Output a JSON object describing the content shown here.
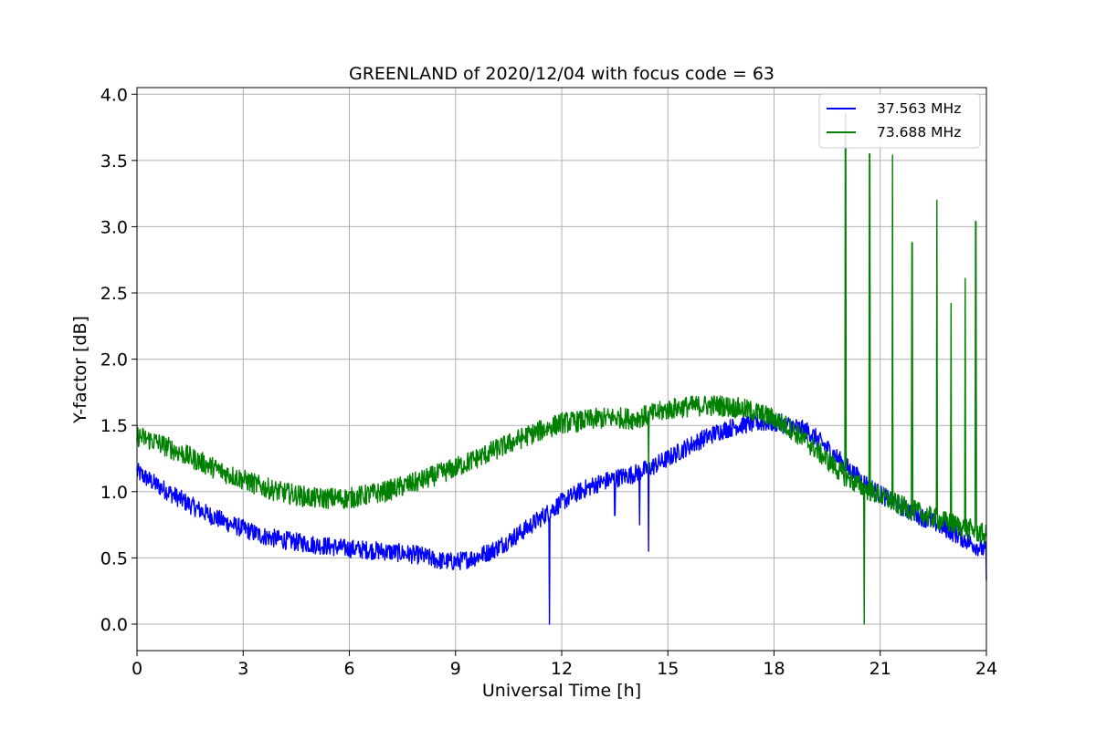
{
  "chart_data": {
    "type": "line",
    "title": "GREENLAND of 2020/12/04 with focus code = 63",
    "xlabel": "Universal Time [h]",
    "ylabel": "Y-factor [dB]",
    "xlim": [
      0,
      24
    ],
    "ylim": [
      -0.2,
      4.05
    ],
    "xticks": [
      0,
      3,
      6,
      9,
      12,
      15,
      18,
      21,
      24
    ],
    "yticks": [
      0.0,
      0.5,
      1.0,
      1.5,
      2.0,
      2.5,
      3.0,
      3.5,
      4.0
    ],
    "xtick_labels": [
      "0",
      "3",
      "6",
      "9",
      "12",
      "15",
      "18",
      "21",
      "24"
    ],
    "ytick_labels": [
      "0.0",
      "0.5",
      "1.0",
      "1.5",
      "2.0",
      "2.5",
      "3.0",
      "3.5",
      "4.0"
    ],
    "grid": true,
    "legend_position": "top-right",
    "series": [
      {
        "name": "37.563 MHz",
        "color": "#0000ff",
        "noise_amplitude": 0.07,
        "x": [
          0,
          0.5,
          1,
          1.5,
          2,
          2.5,
          3,
          3.5,
          4,
          5,
          6,
          7,
          8,
          8.5,
          9,
          9.5,
          10,
          10.5,
          11,
          11.5,
          12,
          12.5,
          13,
          13.5,
          14,
          14.5,
          15,
          15.5,
          16,
          16.5,
          17,
          17.5,
          18,
          18.5,
          19,
          19.5,
          20,
          20.5,
          21,
          21.5,
          22,
          22.5,
          23,
          23.5,
          24
        ],
        "y": [
          1.15,
          1.06,
          0.98,
          0.9,
          0.83,
          0.77,
          0.72,
          0.67,
          0.64,
          0.6,
          0.57,
          0.55,
          0.52,
          0.48,
          0.47,
          0.5,
          0.55,
          0.63,
          0.72,
          0.82,
          0.92,
          1.0,
          1.06,
          1.1,
          1.13,
          1.18,
          1.25,
          1.33,
          1.4,
          1.46,
          1.5,
          1.52,
          1.52,
          1.5,
          1.45,
          1.33,
          1.2,
          1.08,
          0.98,
          0.9,
          0.83,
          0.77,
          0.7,
          0.62,
          0.55
        ],
        "spikes": [
          {
            "x": 11.65,
            "y": 0.0
          },
          {
            "x": 14.45,
            "y": 0.55
          },
          {
            "x": 14.2,
            "y": 0.75
          },
          {
            "x": 13.5,
            "y": 0.82
          },
          {
            "x": 24.0,
            "y": 0.33
          }
        ]
      },
      {
        "name": "73.688 MHz",
        "color": "#008000",
        "noise_amplitude": 0.08,
        "x": [
          0,
          0.5,
          1,
          1.5,
          2,
          2.5,
          3,
          3.5,
          4,
          5,
          6,
          7,
          8,
          8.5,
          9,
          9.5,
          10,
          10.5,
          11,
          11.5,
          12,
          12.5,
          13,
          13.5,
          14,
          14.5,
          15,
          15.5,
          16,
          16.5,
          17,
          17.5,
          18,
          18.5,
          19,
          19.5,
          20,
          20.5,
          21,
          21.5,
          22,
          22.5,
          23,
          23.5,
          24
        ],
        "y": [
          1.42,
          1.38,
          1.32,
          1.26,
          1.2,
          1.14,
          1.09,
          1.04,
          1.0,
          0.95,
          0.95,
          1.0,
          1.08,
          1.13,
          1.18,
          1.24,
          1.3,
          1.36,
          1.42,
          1.47,
          1.52,
          1.53,
          1.55,
          1.56,
          1.55,
          1.58,
          1.62,
          1.64,
          1.65,
          1.65,
          1.63,
          1.6,
          1.55,
          1.47,
          1.36,
          1.24,
          1.12,
          1.03,
          0.97,
          0.9,
          0.85,
          0.8,
          0.76,
          0.72,
          0.67
        ],
        "spikes": [
          {
            "x": 20.02,
            "y": 3.85
          },
          {
            "x": 20.7,
            "y": 3.55
          },
          {
            "x": 21.35,
            "y": 3.54
          },
          {
            "x": 21.9,
            "y": 2.88
          },
          {
            "x": 22.6,
            "y": 3.2
          },
          {
            "x": 23.0,
            "y": 2.42
          },
          {
            "x": 23.4,
            "y": 2.61
          },
          {
            "x": 23.7,
            "y": 3.04
          },
          {
            "x": 20.55,
            "y": 0.0
          },
          {
            "x": 14.45,
            "y": 1.15
          }
        ]
      }
    ]
  }
}
